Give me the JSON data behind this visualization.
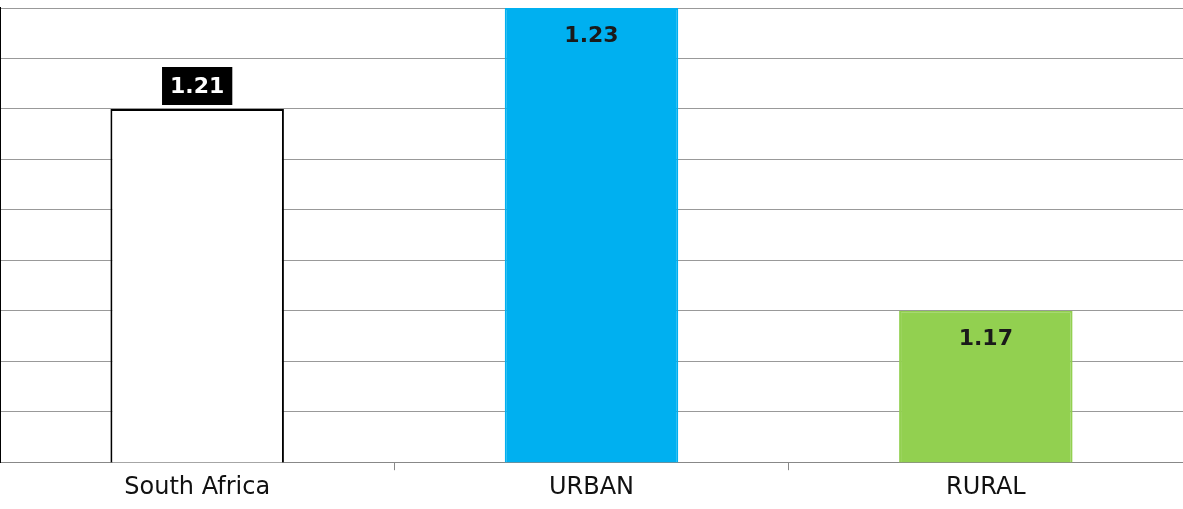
{
  "chart_data": {
    "type": "bar",
    "categories": [
      "South Africa",
      "URBAN",
      "RURAL"
    ],
    "values": [
      1.21,
      1.23,
      1.17
    ],
    "colors": [
      "#ffffff",
      "#00b0f0",
      "#92d050"
    ],
    "ylim": [
      1.14,
      1.23
    ],
    "yticks": [
      1.14,
      1.15,
      1.16,
      1.17,
      1.18,
      1.19,
      1.2,
      1.21,
      1.22,
      1.23
    ],
    "tick_labels": "x",
    "grid": "y",
    "data_labels": true
  }
}
